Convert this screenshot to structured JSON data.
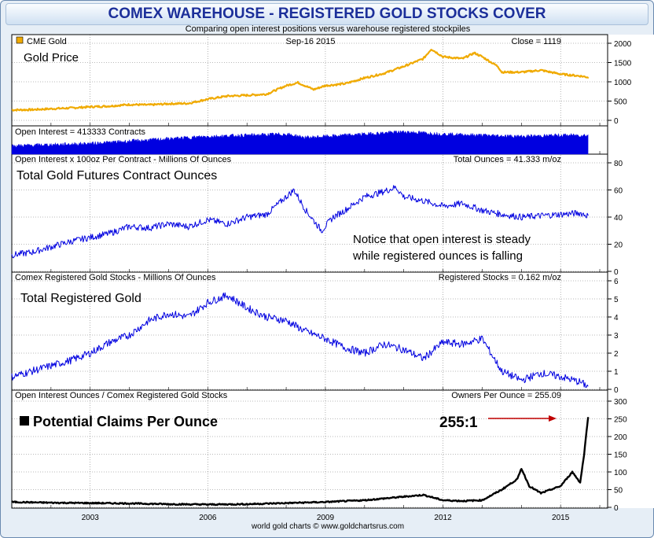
{
  "title": "COMEX WAREHOUSE - REGISTERED GOLD STOCKS COVER",
  "subtitle": "Comparing open interest positions versus warehouse registered stockpiles",
  "footer": "world gold charts © www.goldchartsrus.com",
  "colors": {
    "gold": "#f0aa00",
    "blue": "#0000e0",
    "black": "#000000",
    "arrow": "#c00000",
    "background": "#e6eef6"
  },
  "chart_data": [
    {
      "type": "line",
      "legend": "CME Gold",
      "date": "Sep-16  2015",
      "stat": "Close = 1119",
      "annotation": "Gold Price",
      "ylim": [
        0,
        2000
      ],
      "yticks": [
        0,
        500,
        1000,
        1500,
        2000
      ],
      "series": [
        {
          "name": "CME Gold",
          "points": [
            [
              2001.0,
              270
            ],
            [
              2001.5,
              275
            ],
            [
              2002.0,
              300
            ],
            [
              2002.5,
              320
            ],
            [
              2003.0,
              350
            ],
            [
              2003.5,
              370
            ],
            [
              2004.0,
              410
            ],
            [
              2004.5,
              400
            ],
            [
              2005.0,
              430
            ],
            [
              2005.5,
              440
            ],
            [
              2006.0,
              550
            ],
            [
              2006.5,
              630
            ],
            [
              2007.0,
              650
            ],
            [
              2007.5,
              680
            ],
            [
              2008.0,
              900
            ],
            [
              2008.3,
              980
            ],
            [
              2008.7,
              800
            ],
            [
              2009.0,
              900
            ],
            [
              2009.5,
              950
            ],
            [
              2010.0,
              1100
            ],
            [
              2010.5,
              1220
            ],
            [
              2011.0,
              1400
            ],
            [
              2011.5,
              1600
            ],
            [
              2011.7,
              1850
            ],
            [
              2012.0,
              1650
            ],
            [
              2012.5,
              1600
            ],
            [
              2012.8,
              1750
            ],
            [
              2013.0,
              1650
            ],
            [
              2013.4,
              1400
            ],
            [
              2013.5,
              1250
            ],
            [
              2014.0,
              1250
            ],
            [
              2014.5,
              1300
            ],
            [
              2015.0,
              1200
            ],
            [
              2015.5,
              1150
            ],
            [
              2015.7,
              1119
            ]
          ]
        }
      ]
    },
    {
      "type": "area",
      "legend": "Open Interest = 413333 Contracts",
      "series": [
        {
          "name": "Open Interest",
          "points": [
            [
              2001.0,
              0.35
            ],
            [
              2002.0,
              0.4
            ],
            [
              2003.0,
              0.45
            ],
            [
              2004.0,
              0.55
            ],
            [
              2005.0,
              0.65
            ],
            [
              2006.0,
              0.75
            ],
            [
              2007.0,
              0.8
            ],
            [
              2008.0,
              0.85
            ],
            [
              2008.5,
              0.7
            ],
            [
              2009.0,
              0.75
            ],
            [
              2010.0,
              0.85
            ],
            [
              2011.0,
              0.95
            ],
            [
              2012.0,
              0.85
            ],
            [
              2013.0,
              0.8
            ],
            [
              2014.0,
              0.75
            ],
            [
              2015.0,
              0.8
            ],
            [
              2015.7,
              0.8
            ]
          ]
        }
      ]
    },
    {
      "type": "line",
      "legend": "Open Interest x 100oz Per Contract - Millions Of Ounces",
      "stat": "Total Ounces = 41.333 m/oz",
      "annotation": "Total Gold Futures Contract Ounces",
      "note_lines": [
        "Notice that open interest is steady",
        "while registered ounces is falling"
      ],
      "ylim": [
        0,
        80
      ],
      "yticks": [
        0,
        20,
        40,
        60,
        80
      ],
      "series": [
        {
          "name": "Total Ounces",
          "points": [
            [
              2001.0,
              12
            ],
            [
              2001.5,
              14
            ],
            [
              2002.0,
              18
            ],
            [
              2002.5,
              22
            ],
            [
              2003.0,
              25
            ],
            [
              2003.5,
              28
            ],
            [
              2004.0,
              33
            ],
            [
              2004.5,
              32
            ],
            [
              2005.0,
              35
            ],
            [
              2005.5,
              33
            ],
            [
              2006.0,
              38
            ],
            [
              2006.5,
              35
            ],
            [
              2007.0,
              40
            ],
            [
              2007.5,
              42
            ],
            [
              2008.0,
              55
            ],
            [
              2008.2,
              60
            ],
            [
              2008.5,
              45
            ],
            [
              2008.9,
              30
            ],
            [
              2009.2,
              40
            ],
            [
              2009.5,
              45
            ],
            [
              2010.0,
              55
            ],
            [
              2010.4,
              58
            ],
            [
              2010.8,
              62
            ],
            [
              2011.0,
              55
            ],
            [
              2011.5,
              52
            ],
            [
              2012.0,
              48
            ],
            [
              2012.5,
              50
            ],
            [
              2013.0,
              45
            ],
            [
              2013.5,
              42
            ],
            [
              2014.0,
              40
            ],
            [
              2014.5,
              41
            ],
            [
              2015.0,
              42
            ],
            [
              2015.5,
              43
            ],
            [
              2015.7,
              41
            ]
          ]
        }
      ]
    },
    {
      "type": "line",
      "legend": "Comex Registered Gold Stocks - Millions Of Ounces",
      "stat": "Registered Stocks = 0.162 m/oz",
      "annotation": "Total Registered Gold",
      "ylim": [
        0,
        6
      ],
      "yticks": [
        0,
        1,
        2,
        3,
        4,
        5,
        6
      ],
      "series": [
        {
          "name": "Registered Stocks",
          "points": [
            [
              2001.0,
              0.7
            ],
            [
              2001.5,
              1.0
            ],
            [
              2002.0,
              1.3
            ],
            [
              2002.5,
              1.6
            ],
            [
              2003.0,
              2.0
            ],
            [
              2003.5,
              2.6
            ],
            [
              2004.0,
              3.0
            ],
            [
              2004.5,
              3.8
            ],
            [
              2005.0,
              4.2
            ],
            [
              2005.5,
              4.0
            ],
            [
              2006.0,
              4.8
            ],
            [
              2006.5,
              5.2
            ],
            [
              2007.0,
              4.5
            ],
            [
              2007.5,
              4.0
            ],
            [
              2008.0,
              3.8
            ],
            [
              2008.5,
              3.2
            ],
            [
              2009.0,
              2.8
            ],
            [
              2009.5,
              2.3
            ],
            [
              2010.0,
              2.0
            ],
            [
              2010.5,
              2.5
            ],
            [
              2011.0,
              2.2
            ],
            [
              2011.5,
              1.7
            ],
            [
              2012.0,
              2.6
            ],
            [
              2012.5,
              2.5
            ],
            [
              2013.0,
              2.8
            ],
            [
              2013.5,
              1.0
            ],
            [
              2014.0,
              0.5
            ],
            [
              2014.5,
              0.9
            ],
            [
              2015.0,
              0.7
            ],
            [
              2015.5,
              0.4
            ],
            [
              2015.7,
              0.16
            ]
          ]
        }
      ]
    },
    {
      "type": "line",
      "legend": "Open Interest Ounces / Comex Registered Gold Stocks",
      "stat": "Owners Per Ounce = 255.09",
      "annotation": "Potential Claims Per Ounce",
      "callout": "255:1",
      "ylim": [
        0,
        300
      ],
      "yticks": [
        0,
        50,
        100,
        150,
        200,
        250,
        300
      ],
      "series": [
        {
          "name": "Owners Per Ounce",
          "points": [
            [
              2001.0,
              15
            ],
            [
              2002.0,
              13
            ],
            [
              2003.0,
              12
            ],
            [
              2004.0,
              11
            ],
            [
              2005.0,
              9
            ],
            [
              2006.0,
              8
            ],
            [
              2007.0,
              9
            ],
            [
              2008.0,
              12
            ],
            [
              2009.0,
              15
            ],
            [
              2010.0,
              20
            ],
            [
              2011.0,
              30
            ],
            [
              2011.5,
              35
            ],
            [
              2012.0,
              20
            ],
            [
              2012.5,
              18
            ],
            [
              2013.0,
              20
            ],
            [
              2013.5,
              50
            ],
            [
              2013.9,
              80
            ],
            [
              2014.0,
              110
            ],
            [
              2014.2,
              60
            ],
            [
              2014.5,
              40
            ],
            [
              2015.0,
              60
            ],
            [
              2015.3,
              100
            ],
            [
              2015.5,
              70
            ],
            [
              2015.6,
              150
            ],
            [
              2015.7,
              255
            ]
          ]
        }
      ]
    }
  ],
  "x_axis": {
    "ticks": [
      "2003",
      "2006",
      "2009",
      "2012",
      "2015"
    ],
    "tick_years": [
      2003,
      2006,
      2009,
      2012,
      2015
    ],
    "range": [
      2001.0,
      2016.2
    ]
  }
}
